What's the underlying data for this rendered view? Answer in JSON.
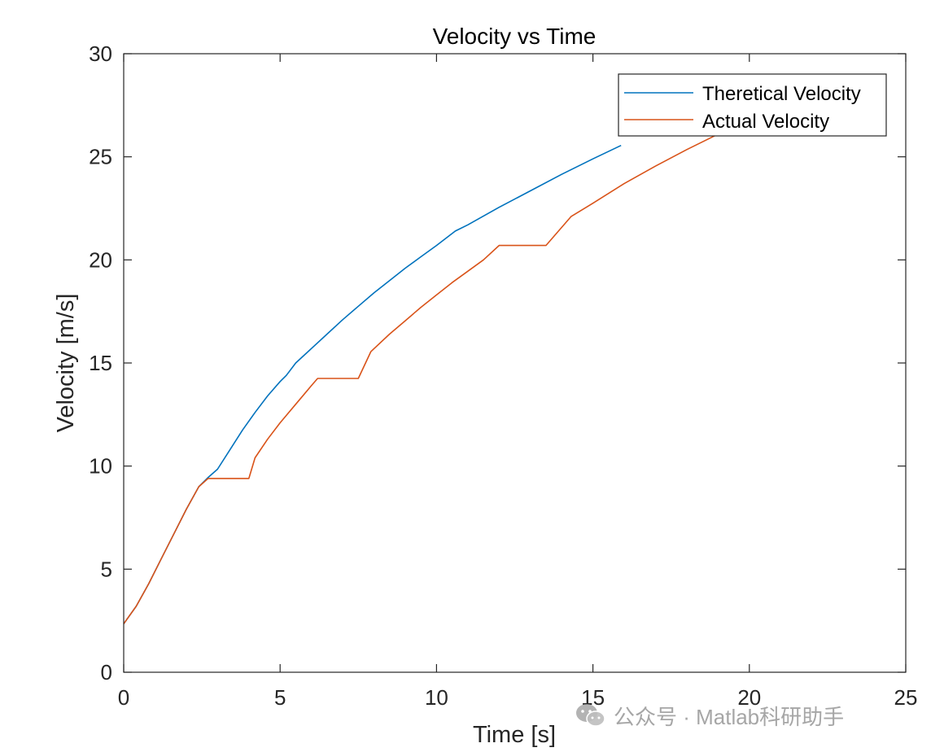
{
  "chart_data": {
    "type": "line",
    "title": "Velocity vs Time",
    "xlabel": "Time [s]",
    "ylabel": "Velocity [m/s]",
    "xlim": [
      0,
      25
    ],
    "ylim": [
      0,
      30
    ],
    "xticks": [
      0,
      5,
      10,
      15,
      20,
      25
    ],
    "yticks": [
      0,
      5,
      10,
      15,
      20,
      25,
      30
    ],
    "grid": false,
    "legend_position": "top-right",
    "series": [
      {
        "name": "Theretical Velocity",
        "color": "#0072BD",
        "x": [
          0,
          0.4,
          0.8,
          1.2,
          1.6,
          2.0,
          2.4,
          2.7,
          3.0,
          3.4,
          3.8,
          4.2,
          4.6,
          5.0,
          5.2,
          5.5,
          6.0,
          6.5,
          7.0,
          7.5,
          8.0,
          8.5,
          9.0,
          9.5,
          10.0,
          10.6,
          11.0,
          12.0,
          13.0,
          14.0,
          15.0,
          15.9
        ],
        "y": [
          2.35,
          3.2,
          4.3,
          5.5,
          6.7,
          7.9,
          9.0,
          9.45,
          9.85,
          10.8,
          11.75,
          12.6,
          13.4,
          14.1,
          14.4,
          15.0,
          15.7,
          16.4,
          17.1,
          17.75,
          18.4,
          19.0,
          19.6,
          20.15,
          20.7,
          21.4,
          21.7,
          22.55,
          23.35,
          24.15,
          24.9,
          25.55
        ]
      },
      {
        "name": "Actual Velocity",
        "color": "#D95319",
        "x": [
          0,
          0.4,
          0.8,
          1.2,
          1.6,
          2.0,
          2.4,
          2.7,
          3.0,
          3.5,
          4.0,
          4.2,
          4.6,
          5.0,
          5.5,
          6.0,
          6.2,
          6.5,
          7.0,
          7.5,
          7.9,
          8.5,
          9.0,
          9.5,
          10.0,
          10.5,
          11.0,
          11.5,
          12.0,
          12.5,
          13.0,
          13.5,
          14.3,
          15.0,
          16.0,
          17.0,
          18.0,
          19.0
        ],
        "y": [
          2.35,
          3.2,
          4.3,
          5.5,
          6.7,
          7.9,
          9.0,
          9.4,
          9.4,
          9.4,
          9.4,
          10.4,
          11.3,
          12.1,
          13.0,
          13.9,
          14.25,
          14.25,
          14.25,
          14.25,
          15.55,
          16.4,
          17.05,
          17.7,
          18.3,
          18.9,
          19.45,
          20.0,
          20.7,
          20.7,
          20.7,
          20.7,
          22.1,
          22.75,
          23.7,
          24.55,
          25.35,
          26.1
        ]
      }
    ]
  },
  "watermark": {
    "text": "公众号 · Matlab科研助手",
    "icon": "wechat-icon"
  }
}
